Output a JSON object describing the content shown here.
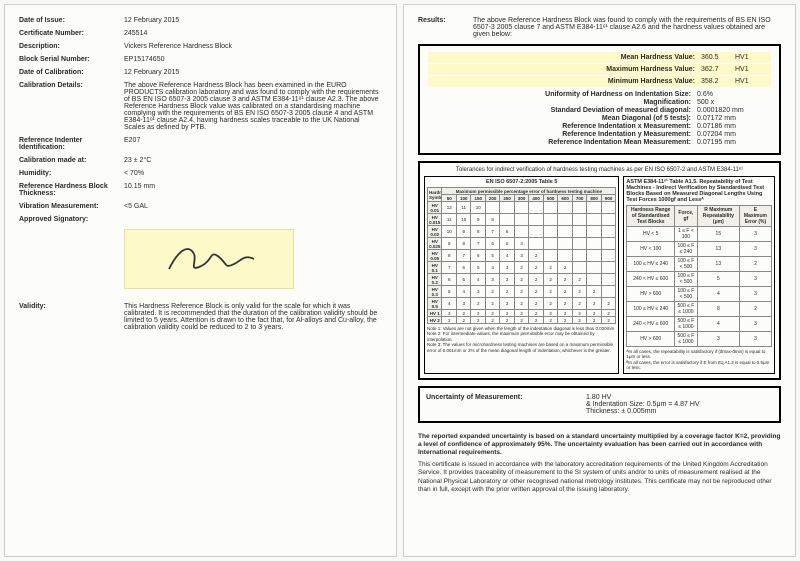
{
  "left": {
    "rows": [
      {
        "label": "Date of Issue:",
        "value": "12 February 2015"
      },
      {
        "label": "Certificate Number:",
        "value": "245514"
      },
      {
        "label": "Description:",
        "value": "Vickers Reference Hardness Block"
      },
      {
        "label": "Block Serial Number:",
        "value": "EP15174650"
      },
      {
        "label": "Date of Calibration:",
        "value": "12 February 2015"
      },
      {
        "label": "Calibration Details:",
        "value": "The above Reference Hardness Block has been examined in the EURO PRODUCTS calibration laboratory and was found to comply with the requirements of BS EN ISO 6507-3 2005 clause 3 and ASTM E384-11ᵉ¹ clause A2.3. The above Reference Hardness Block value was calibrated on a standardising machine complying with the requirements of BS EN ISO 6507-3 2005 clause 4 and ASTM E384-11ᵉ¹ clause A2.4, having hardness scales traceable to the UK National Scales as defined by PTB."
      },
      {
        "label": "Reference Indenter Identification:",
        "value": "E207"
      },
      {
        "label": "Calibration made at:",
        "value": "23 ± 2°C"
      },
      {
        "label": "Humidity:",
        "value": "< 70%"
      },
      {
        "label": "Reference Hardness Block Thickness:",
        "value": "10.15 mm"
      },
      {
        "label": "Vibration Measurement:",
        "value": "<5 GAL"
      },
      {
        "label": "Approved Signatory:",
        "value": ""
      }
    ],
    "validity_label": "Validity:",
    "validity_text": "This Hardness Reference Block is only valid for the scale for which it was calibrated. It is recommended that the duration of the calibration validity should be limited to 5 years. Attention is drawn to the fact that, for Al-alloys and Cu-alloy, the calibration validity could be reduced to 2 to 3 years."
  },
  "right": {
    "results_label": "Results:",
    "results_intro": "The above Reference Hardness Block was found to comply with the requirements of BS EN ISO 6507-3 2005 clause 7 and ASTM E384-11ᵉ¹ clause A2.6 and the hardness values obtained are given below:",
    "highlights": [
      {
        "label": "Mean Hardness Value:",
        "val": "360.5",
        "unit": "HV1"
      },
      {
        "label": "Maximum Hardness Value:",
        "val": "362.7",
        "unit": "HV1"
      },
      {
        "label": "Minimum Hardness Value:",
        "val": "358.2",
        "unit": "HV1"
      }
    ],
    "results": [
      {
        "label": "Uniformity of Hardness on Indentation Size:",
        "val": "0.6%"
      },
      {
        "label": "Magnification:",
        "val": "500 x"
      },
      {
        "label": "Standard Deviation of measured diagonal:",
        "val": "0.0001820 mm"
      },
      {
        "label": "Mean Diagonal (of 5 tests):",
        "val": "0.07172 mm"
      },
      {
        "label": "Reference Indentation x Measurement:",
        "val": "0.07186 mm"
      },
      {
        "label": "Reference Indentation y Measurement:",
        "val": "0.07204 mm"
      },
      {
        "label": "Reference Indentation Mean Measurement:",
        "val": "0.07195 mm"
      }
    ],
    "tol_title": "Tolerances for indirect verification of hardness testing machines as per EN ISO 6507-2 and ASTM E384-11ᵉ¹",
    "left_tbl_title": "EN ISO 6507-2:2005 Table 5",
    "left_tbl_sub": "Maximum permissible percentage error of hardness testing machine",
    "right_tbl_title": "ASTM E384-11ᵉ¹ Table A1.5. Repeatability of Test Machines - Indirect Verification by Standardised Test Blocks Based on Measured Diagonal Lengths Using Test Forces 1000gf and Lessᴬ",
    "hardness_col": "Hardness Symbol",
    "hv_rows": [
      "HV 0.01",
      "HV 0.015",
      "HV 0.02",
      "HV 0.025",
      "HV 0.05",
      "HV 0.1",
      "HV 0.2",
      "HV 0.3",
      "HV 0.5",
      "HV 1",
      "HV 2"
    ],
    "note1": "Note 1: Values are not given when the length of the indentation diagonal is less than 0.020mm",
    "note2": "Note 2: For intermediate values, the maximum permissible error may be obtained by interpolation.",
    "note3": "Note 3: The values for microhardness testing machines are based on a maximum permissible error of 0.001mm or 2% of the mean diagonal length of indentation, whichever is the greater.",
    "astm_col1": "Hardness Range of Standardised Test Blocks",
    "astm_col2": "Force, gf",
    "astm_col3": "R Maximum Repeatability (μm)",
    "astm_col4": "E Maximum Error (%)",
    "astm_rows": [
      [
        "HV < 5",
        "1 ≤ F < 100",
        "15",
        "3"
      ],
      [
        "HV < 100",
        "100 ≤ F ≤ 240",
        "13",
        "3"
      ],
      [
        "100 ≤ HV ≤ 240",
        "100 ≤ F < 500",
        "13",
        "2"
      ],
      [
        "240 < HV ≤ 600",
        "100 ≤ F < 500",
        "5",
        "3"
      ],
      [
        "HV > 600",
        "100 ≤ F < 500",
        "4",
        "3"
      ],
      [
        "100 ≤ HV ≤ 240",
        "500 ≤ F ≤ 1000",
        "8",
        "2"
      ],
      [
        "240 < HV ≤ 600",
        "500 ≤ F ≤ 1000",
        "4",
        "3"
      ],
      [
        "HV > 600",
        "500 ≤ F ≤ 1000",
        "3",
        "3"
      ]
    ],
    "astm_note1": "ᴬIn all cases, the repeatability is satisfactory if (d̄max-d̄min) is equal to 1μm or less.",
    "astm_note2": "ᴮIn all cases, the error is satisfactory if E from Eq A1.2 is equal to 0.5μm or less.",
    "unc_label": "Uncertainty of Measurement:",
    "unc_val": "1.80 HV",
    "unc_line2": "& Indentation Size: 0.5μm = 4.87 HV",
    "unc_line3": "Thickness: ± 0.005mm",
    "footer_bold": "The reported expanded uncertainty is based on a standard uncertainty multiplied by a coverage factor K=2, providing a level of confidence of approximately 95%. The uncertainty evaluation has been carried out in accordance with International requirements.",
    "footer_text": "This certificate is issued in accordance with the laboratory accreditation requirements of the United Kingdom Accreditation Service. It provides traceability of measurement to the SI system of units and/or to units of measurement realised at the National Physical Laboratory or other recognised national metrology institutes. This certificate may not be reproduced other than in full, except with the prior written approval of the issuing laboratory."
  }
}
